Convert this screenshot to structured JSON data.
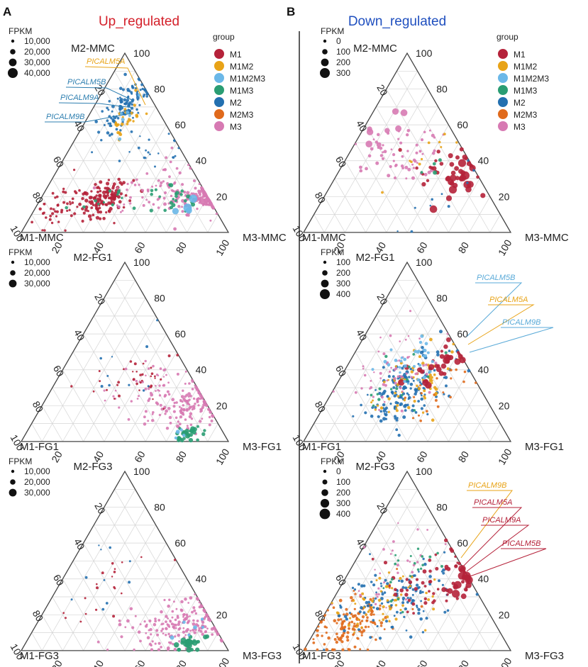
{
  "figure": {
    "divider": true,
    "panels": [
      {
        "letter": "A",
        "title": "Up_regulated",
        "title_color": "#d4202a",
        "plots": [
          {
            "corner_labels": {
              "top": "M2-MMC",
              "left": "M1-MMC",
              "right": "M3-MMC"
            },
            "fpkm_title": "FPKM",
            "fpkm_legend": [
              "10,000",
              "20,000",
              "30,000",
              "40,000"
            ],
            "show_group_legend": true,
            "annotations": [
              {
                "text": "PICALM5A",
                "color": "#e8a317"
              },
              {
                "text": "PICALM5B",
                "color": "#2e7fb0"
              },
              {
                "text": "PICALM9A",
                "color": "#2e7fb0"
              },
              {
                "text": "PICALM9B",
                "color": "#2e7fb0"
              }
            ]
          },
          {
            "corner_labels": {
              "top": "M2-FG1",
              "left": "M1-FG1",
              "right": "M3-FG1"
            },
            "fpkm_title": "FPKM",
            "fpkm_legend": [
              "10,000",
              "20,000",
              "30,000"
            ],
            "show_group_legend": false,
            "annotations": []
          },
          {
            "corner_labels": {
              "top": "M2-FG3",
              "left": "M1-FG3",
              "right": "M3-FG3"
            },
            "fpkm_title": "FPKM",
            "fpkm_legend": [
              "10,000",
              "20,000",
              "30,000"
            ],
            "show_group_legend": false,
            "annotations": []
          }
        ]
      },
      {
        "letter": "B",
        "title": "Down_regulated",
        "title_color": "#1f4fbf",
        "plots": [
          {
            "corner_labels": {
              "top": "M2-MMC",
              "left": "M1-MMC",
              "right": "M3-MMC"
            },
            "fpkm_title": "FPKM",
            "fpkm_legend": [
              "0",
              "100",
              "200",
              "300"
            ],
            "show_group_legend": true,
            "annotations": []
          },
          {
            "corner_labels": {
              "top": "M2-FG1",
              "left": "M1-FG1",
              "right": "M3-FG1"
            },
            "fpkm_title": "FPKM",
            "fpkm_legend": [
              "100",
              "200",
              "300",
              "400"
            ],
            "show_group_legend": false,
            "annotations": [
              {
                "text": "PICALM5B",
                "color": "#5aaad8"
              },
              {
                "text": "PICALM5A",
                "color": "#e8a317"
              },
              {
                "text": "PICALM9B",
                "color": "#5aaad8"
              }
            ]
          },
          {
            "corner_labels": {
              "top": "M2-FG3",
              "left": "M1-FG3",
              "right": "M3-FG3"
            },
            "fpkm_title": "FPKM",
            "fpkm_legend": [
              "0",
              "100",
              "200",
              "300",
              "400"
            ],
            "show_group_legend": false,
            "annotations": [
              {
                "text": "PICALM9B",
                "color": "#e8a317"
              },
              {
                "text": "PICALM5A",
                "color": "#b5223a"
              },
              {
                "text": "PICALM9A",
                "color": "#b5223a"
              },
              {
                "text": "PICALM5B",
                "color": "#b5223a"
              }
            ]
          }
        ]
      }
    ]
  },
  "chart_data": {
    "type": "scatter",
    "subtype": "ternary",
    "axis_ticks": [
      "20",
      "40",
      "60",
      "80",
      "100"
    ],
    "group_legend": {
      "title": "group",
      "items": [
        {
          "name": "M1",
          "color": "#b5223a"
        },
        {
          "name": "M1M2",
          "color": "#e8a317"
        },
        {
          "name": "M1M2M3",
          "color": "#6bb8e8"
        },
        {
          "name": "M1M3",
          "color": "#2a9d73"
        },
        {
          "name": "M2",
          "color": "#2370b0"
        },
        {
          "name": "M2M3",
          "color": "#e06a1c"
        },
        {
          "name": "M3",
          "color": "#d77ab3"
        }
      ]
    },
    "clusters": [
      [
        {
          "group": "M2",
          "a": 70,
          "b": 15,
          "n": 110,
          "sa": 9,
          "sb": 4,
          "r": [
            1.4,
            2.4
          ]
        },
        {
          "group": "M1M2",
          "a": 62,
          "b": 20,
          "n": 25,
          "sa": 6,
          "sb": 4,
          "r": [
            1.6,
            2.4
          ]
        },
        {
          "group": "M1M2M3",
          "a": 66,
          "b": 18,
          "n": 6,
          "sa": 4,
          "sb": 3,
          "r": [
            2,
            3
          ]
        },
        {
          "group": "M1",
          "a": 18,
          "b": 30,
          "n": 130,
          "sa": 5,
          "sb": 6,
          "r": [
            1.6,
            2.8
          ]
        },
        {
          "group": "M1",
          "a": 12,
          "b": 10,
          "n": 40,
          "sa": 7,
          "sb": 5,
          "r": [
            1.4,
            2.2
          ]
        },
        {
          "group": "M1M3",
          "a": 18,
          "b": 32,
          "n": 12,
          "sa": 4,
          "sb": 6,
          "r": [
            1.6,
            2.4
          ]
        },
        {
          "group": "M3",
          "a": 18,
          "b": 80,
          "n": 170,
          "sa": 4,
          "sb": 8,
          "r": [
            1.4,
            2.6
          ]
        },
        {
          "group": "M3",
          "a": 25,
          "b": 52,
          "n": 60,
          "sa": 8,
          "sb": 10,
          "r": [
            1.4,
            2.2
          ]
        },
        {
          "group": "M1M3",
          "a": 18,
          "b": 68,
          "n": 25,
          "sa": 4,
          "sb": 6,
          "r": [
            1.8,
            3
          ]
        },
        {
          "group": "M1M2M3",
          "a": 15,
          "b": 72,
          "n": 4,
          "sa": 3,
          "sb": 3,
          "r": [
            4,
            6
          ]
        },
        {
          "group": "M2",
          "a": 48,
          "b": 40,
          "n": 20,
          "sa": 10,
          "sb": 10,
          "r": [
            1.2,
            2
          ]
        }
      ],
      [
        {
          "group": "M3",
          "a": 20,
          "b": 70,
          "n": 140,
          "sa": 7,
          "sb": 10,
          "r": [
            1.4,
            2.4
          ]
        },
        {
          "group": "M3",
          "a": 32,
          "b": 48,
          "n": 40,
          "sa": 6,
          "sb": 10,
          "r": [
            1.2,
            2
          ]
        },
        {
          "group": "M1M3",
          "a": 4,
          "b": 78,
          "n": 30,
          "sa": 2,
          "sb": 3,
          "r": [
            2,
            3.6
          ]
        },
        {
          "group": "M1",
          "a": 35,
          "b": 35,
          "n": 35,
          "sa": 8,
          "sb": 10,
          "r": [
            1.2,
            2
          ]
        },
        {
          "group": "M2",
          "a": 40,
          "b": 30,
          "n": 10,
          "sa": 12,
          "sb": 10,
          "r": [
            1.2,
            2
          ]
        },
        {
          "group": "M1M2M3",
          "a": 6,
          "b": 75,
          "n": 4,
          "sa": 2,
          "sb": 2,
          "r": [
            2,
            3
          ]
        }
      ],
      [
        {
          "group": "M3",
          "a": 15,
          "b": 70,
          "n": 180,
          "sa": 8,
          "sb": 12,
          "r": [
            1.4,
            2.4
          ]
        },
        {
          "group": "M1M3",
          "a": 4,
          "b": 80,
          "n": 30,
          "sa": 2,
          "sb": 3,
          "r": [
            2.4,
            4
          ]
        },
        {
          "group": "M1",
          "a": 35,
          "b": 22,
          "n": 20,
          "sa": 12,
          "sb": 8,
          "r": [
            1.2,
            2
          ]
        },
        {
          "group": "M2",
          "a": 40,
          "b": 20,
          "n": 10,
          "sa": 12,
          "sb": 8,
          "r": [
            1.2,
            2
          ]
        },
        {
          "group": "M1M2M3",
          "a": 10,
          "b": 75,
          "n": 6,
          "sa": 4,
          "sb": 6,
          "r": [
            2,
            3
          ]
        }
      ],
      [
        {
          "group": "M3",
          "a": 45,
          "b": 25,
          "n": 60,
          "sa": 8,
          "sb": 10,
          "r": [
            1.4,
            2.6
          ]
        },
        {
          "group": "M3",
          "a": 55,
          "b": 10,
          "n": 8,
          "sa": 8,
          "sb": 4,
          "r": [
            3,
            5
          ]
        },
        {
          "group": "M1",
          "a": 36,
          "b": 45,
          "n": 25,
          "sa": 6,
          "sb": 10,
          "r": [
            2,
            3.6
          ]
        },
        {
          "group": "M1",
          "a": 28,
          "b": 62,
          "n": 22,
          "sa": 5,
          "sb": 5,
          "r": [
            3,
            6
          ]
        },
        {
          "group": "M1M2",
          "a": 40,
          "b": 38,
          "n": 10,
          "sa": 8,
          "sb": 8,
          "r": [
            1.4,
            2
          ]
        },
        {
          "group": "M2",
          "a": 20,
          "b": 55,
          "n": 10,
          "sa": 10,
          "sb": 10,
          "r": [
            1.2,
            2
          ]
        },
        {
          "group": "M1M3",
          "a": 38,
          "b": 42,
          "n": 4,
          "sa": 4,
          "sb": 4,
          "r": [
            2,
            3
          ]
        }
      ],
      [
        {
          "group": "M2",
          "a": 30,
          "b": 35,
          "n": 160,
          "sa": 10,
          "sb": 9,
          "r": [
            1.4,
            2.6
          ]
        },
        {
          "group": "M1M2",
          "a": 33,
          "b": 35,
          "n": 70,
          "sa": 10,
          "sb": 10,
          "r": [
            1.4,
            2.4
          ]
        },
        {
          "group": "M3",
          "a": 40,
          "b": 25,
          "n": 60,
          "sa": 12,
          "sb": 12,
          "r": [
            1.2,
            2.2
          ]
        },
        {
          "group": "M1",
          "a": 42,
          "b": 45,
          "n": 30,
          "sa": 6,
          "sb": 6,
          "r": [
            2,
            5
          ]
        },
        {
          "group": "M1M2M3",
          "a": 45,
          "b": 30,
          "n": 30,
          "sa": 6,
          "sb": 6,
          "r": [
            1.6,
            2.6
          ]
        },
        {
          "group": "M1M3",
          "a": 35,
          "b": 32,
          "n": 15,
          "sa": 10,
          "sb": 10,
          "r": [
            1.6,
            2.2
          ]
        },
        {
          "group": "M2M3",
          "a": 25,
          "b": 50,
          "n": 20,
          "sa": 8,
          "sb": 12,
          "r": [
            1.4,
            2
          ]
        }
      ],
      [
        {
          "group": "M2M3",
          "a": 15,
          "b": 15,
          "n": 140,
          "sa": 8,
          "sb": 9,
          "r": [
            1.4,
            2.4
          ]
        },
        {
          "group": "M2",
          "a": 30,
          "b": 30,
          "n": 120,
          "sa": 10,
          "sb": 12,
          "r": [
            1.4,
            2.4
          ]
        },
        {
          "group": "M1M2",
          "a": 25,
          "b": 25,
          "n": 60,
          "sa": 10,
          "sb": 12,
          "r": [
            1.4,
            2.2
          ]
        },
        {
          "group": "M1",
          "a": 40,
          "b": 45,
          "n": 60,
          "sa": 10,
          "sb": 12,
          "r": [
            1.6,
            3
          ]
        },
        {
          "group": "M1",
          "a": 40,
          "b": 58,
          "n": 15,
          "sa": 4,
          "sb": 4,
          "r": [
            3,
            6
          ]
        },
        {
          "group": "M3",
          "a": 42,
          "b": 22,
          "n": 30,
          "sa": 12,
          "sb": 10,
          "r": [
            1.2,
            2
          ]
        },
        {
          "group": "M1M3",
          "a": 45,
          "b": 30,
          "n": 20,
          "sa": 8,
          "sb": 8,
          "r": [
            1.4,
            2
          ]
        }
      ]
    ]
  }
}
